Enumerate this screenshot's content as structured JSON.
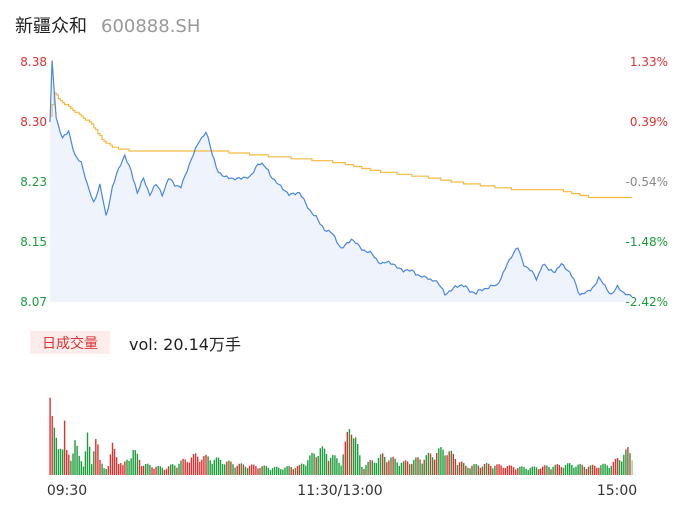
{
  "header": {
    "name": "新疆众和",
    "code": "600888.SH"
  },
  "volume_panel": {
    "tab_label": "日成交量",
    "readout": "vol: 20.14万手"
  },
  "colors": {
    "up": "#e03131",
    "down": "#1a9e3a",
    "neutral": "#888888",
    "price_line": "#4a86e8",
    "avg_line": "#f5b942",
    "area_fill": "#eef3fc"
  },
  "chart_data": {
    "type": "line",
    "price_axis": {
      "ticks": [
        "8.38",
        "8.30",
        "8.23",
        "8.15",
        "8.07"
      ],
      "pct_ticks": [
        "1.33%",
        "0.39%",
        "-0.54%",
        "-1.48%",
        "-2.42%"
      ],
      "min": 8.07,
      "max": 8.38,
      "prev_close": 8.27
    },
    "time_labels": [
      "09:30",
      "11:30/13:00",
      "15:00"
    ],
    "price_keypoints": [
      [
        0,
        8.3
      ],
      [
        1,
        8.38
      ],
      [
        3,
        8.31
      ],
      [
        6,
        8.28
      ],
      [
        9,
        8.29
      ],
      [
        12,
        8.26
      ],
      [
        15,
        8.25
      ],
      [
        18,
        8.22
      ],
      [
        21,
        8.2
      ],
      [
        24,
        8.22
      ],
      [
        27,
        8.18
      ],
      [
        30,
        8.22
      ],
      [
        33,
        8.24
      ],
      [
        36,
        8.26
      ],
      [
        39,
        8.24
      ],
      [
        42,
        8.21
      ],
      [
        45,
        8.23
      ],
      [
        48,
        8.21
      ],
      [
        51,
        8.22
      ],
      [
        54,
        8.21
      ],
      [
        57,
        8.23
      ],
      [
        60,
        8.22
      ],
      [
        63,
        8.22
      ],
      [
        66,
        8.24
      ],
      [
        69,
        8.26
      ],
      [
        72,
        8.28
      ],
      [
        75,
        8.29
      ],
      [
        78,
        8.26
      ],
      [
        81,
        8.24
      ],
      [
        84,
        8.23
      ],
      [
        90,
        8.23
      ],
      [
        96,
        8.23
      ],
      [
        100,
        8.25
      ],
      [
        105,
        8.24
      ],
      [
        110,
        8.22
      ],
      [
        115,
        8.21
      ],
      [
        120,
        8.21
      ],
      [
        125,
        8.19
      ],
      [
        130,
        8.17
      ],
      [
        135,
        8.16
      ],
      [
        140,
        8.14
      ],
      [
        145,
        8.15
      ],
      [
        150,
        8.14
      ],
      [
        155,
        8.13
      ],
      [
        160,
        8.12
      ],
      [
        165,
        8.12
      ],
      [
        170,
        8.11
      ],
      [
        175,
        8.11
      ],
      [
        180,
        8.1
      ],
      [
        185,
        8.1
      ],
      [
        190,
        8.08
      ],
      [
        195,
        8.09
      ],
      [
        200,
        8.09
      ],
      [
        205,
        8.08
      ],
      [
        210,
        8.09
      ],
      [
        215,
        8.09
      ],
      [
        220,
        8.12
      ],
      [
        225,
        8.14
      ],
      [
        228,
        8.12
      ],
      [
        231,
        8.11
      ],
      [
        234,
        8.1
      ],
      [
        237,
        8.12
      ],
      [
        240,
        8.11
      ],
      [
        243,
        8.11
      ],
      [
        246,
        8.12
      ],
      [
        249,
        8.11
      ],
      [
        252,
        8.1
      ],
      [
        255,
        8.08
      ],
      [
        258,
        8.08
      ],
      [
        261,
        8.09
      ],
      [
        264,
        8.1
      ],
      [
        267,
        8.09
      ],
      [
        270,
        8.08
      ],
      [
        273,
        8.09
      ],
      [
        276,
        8.08
      ],
      [
        280,
        8.08
      ]
    ],
    "avg_keypoints": [
      [
        0,
        8.31
      ],
      [
        2,
        8.34
      ],
      [
        5,
        8.33
      ],
      [
        10,
        8.32
      ],
      [
        15,
        8.31
      ],
      [
        20,
        8.3
      ],
      [
        25,
        8.28
      ],
      [
        30,
        8.27
      ],
      [
        40,
        8.265
      ],
      [
        60,
        8.265
      ],
      [
        80,
        8.265
      ],
      [
        100,
        8.26
      ],
      [
        120,
        8.255
      ],
      [
        140,
        8.25
      ],
      [
        155,
        8.24
      ],
      [
        170,
        8.235
      ],
      [
        185,
        8.23
      ],
      [
        195,
        8.225
      ],
      [
        210,
        8.22
      ],
      [
        225,
        8.215
      ],
      [
        245,
        8.215
      ],
      [
        260,
        8.205
      ],
      [
        280,
        8.205
      ]
    ],
    "volume_keypoints": [
      [
        0,
        1.0
      ],
      [
        1,
        0.62
      ],
      [
        2,
        0.47
      ],
      [
        3,
        0.4
      ],
      [
        4,
        0.35
      ],
      [
        5,
        0.42
      ],
      [
        6,
        0.3
      ],
      [
        7,
        0.55
      ],
      [
        8,
        0.25
      ],
      [
        10,
        0.22
      ],
      [
        12,
        0.38
      ],
      [
        14,
        0.2
      ],
      [
        16,
        0.15
      ],
      [
        18,
        0.44
      ],
      [
        20,
        0.12
      ],
      [
        22,
        0.55
      ],
      [
        24,
        0.15
      ],
      [
        26,
        0.08
      ],
      [
        28,
        0.12
      ],
      [
        30,
        0.32
      ],
      [
        35,
        0.1
      ],
      [
        40,
        0.28
      ],
      [
        45,
        0.12
      ],
      [
        50,
        0.1
      ],
      [
        55,
        0.08
      ],
      [
        60,
        0.12
      ],
      [
        70,
        0.22
      ],
      [
        80,
        0.18
      ],
      [
        90,
        0.12
      ],
      [
        100,
        0.1
      ],
      [
        110,
        0.08
      ],
      [
        120,
        0.1
      ],
      [
        130,
        0.3
      ],
      [
        140,
        0.15
      ],
      [
        145,
        0.62
      ],
      [
        150,
        0.1
      ],
      [
        160,
        0.22
      ],
      [
        170,
        0.14
      ],
      [
        180,
        0.2
      ],
      [
        190,
        0.3
      ],
      [
        200,
        0.1
      ],
      [
        210,
        0.12
      ],
      [
        220,
        0.1
      ],
      [
        230,
        0.08
      ],
      [
        240,
        0.1
      ],
      [
        250,
        0.12
      ],
      [
        260,
        0.1
      ],
      [
        270,
        0.12
      ],
      [
        278,
        0.28
      ],
      [
        280,
        0.22
      ]
    ],
    "volume_scale": {
      "max": 1.0
    }
  }
}
